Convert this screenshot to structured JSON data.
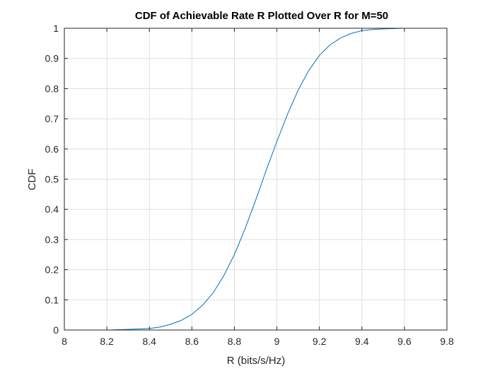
{
  "chart_data": {
    "type": "line",
    "title": "CDF of Achievable Rate R Plotted Over R for M=50",
    "xlabel": "R (bits/s/Hz)",
    "ylabel": "CDF",
    "xlim": [
      8,
      9.8
    ],
    "ylim": [
      0,
      1
    ],
    "x_ticks": [
      "8",
      "8.2",
      "8.4",
      "8.6",
      "8.8",
      "9",
      "9.2",
      "9.4",
      "9.6",
      "9.8"
    ],
    "y_ticks": [
      "0",
      "0.1",
      "0.2",
      "0.3",
      "0.4",
      "0.5",
      "0.6",
      "0.7",
      "0.8",
      "0.9",
      "1"
    ],
    "grid": true,
    "legend": "none",
    "series": [
      {
        "color": "#0072bd",
        "x": [
          8.05,
          8.2,
          8.3,
          8.4,
          8.45,
          8.5,
          8.55,
          8.6,
          8.65,
          8.7,
          8.75,
          8.8,
          8.85,
          8.9,
          8.95,
          9.0,
          9.05,
          9.1,
          9.15,
          9.2,
          9.25,
          9.3,
          9.35,
          9.4,
          9.45,
          9.5,
          9.6,
          9.7,
          9.78
        ],
        "y": [
          0.0,
          0.0,
          0.002,
          0.005,
          0.01,
          0.019,
          0.032,
          0.052,
          0.082,
          0.123,
          0.18,
          0.25,
          0.335,
          0.43,
          0.53,
          0.625,
          0.715,
          0.795,
          0.86,
          0.91,
          0.945,
          0.968,
          0.983,
          0.992,
          0.996,
          0.998,
          1.0,
          1.0,
          1.0
        ]
      }
    ]
  }
}
